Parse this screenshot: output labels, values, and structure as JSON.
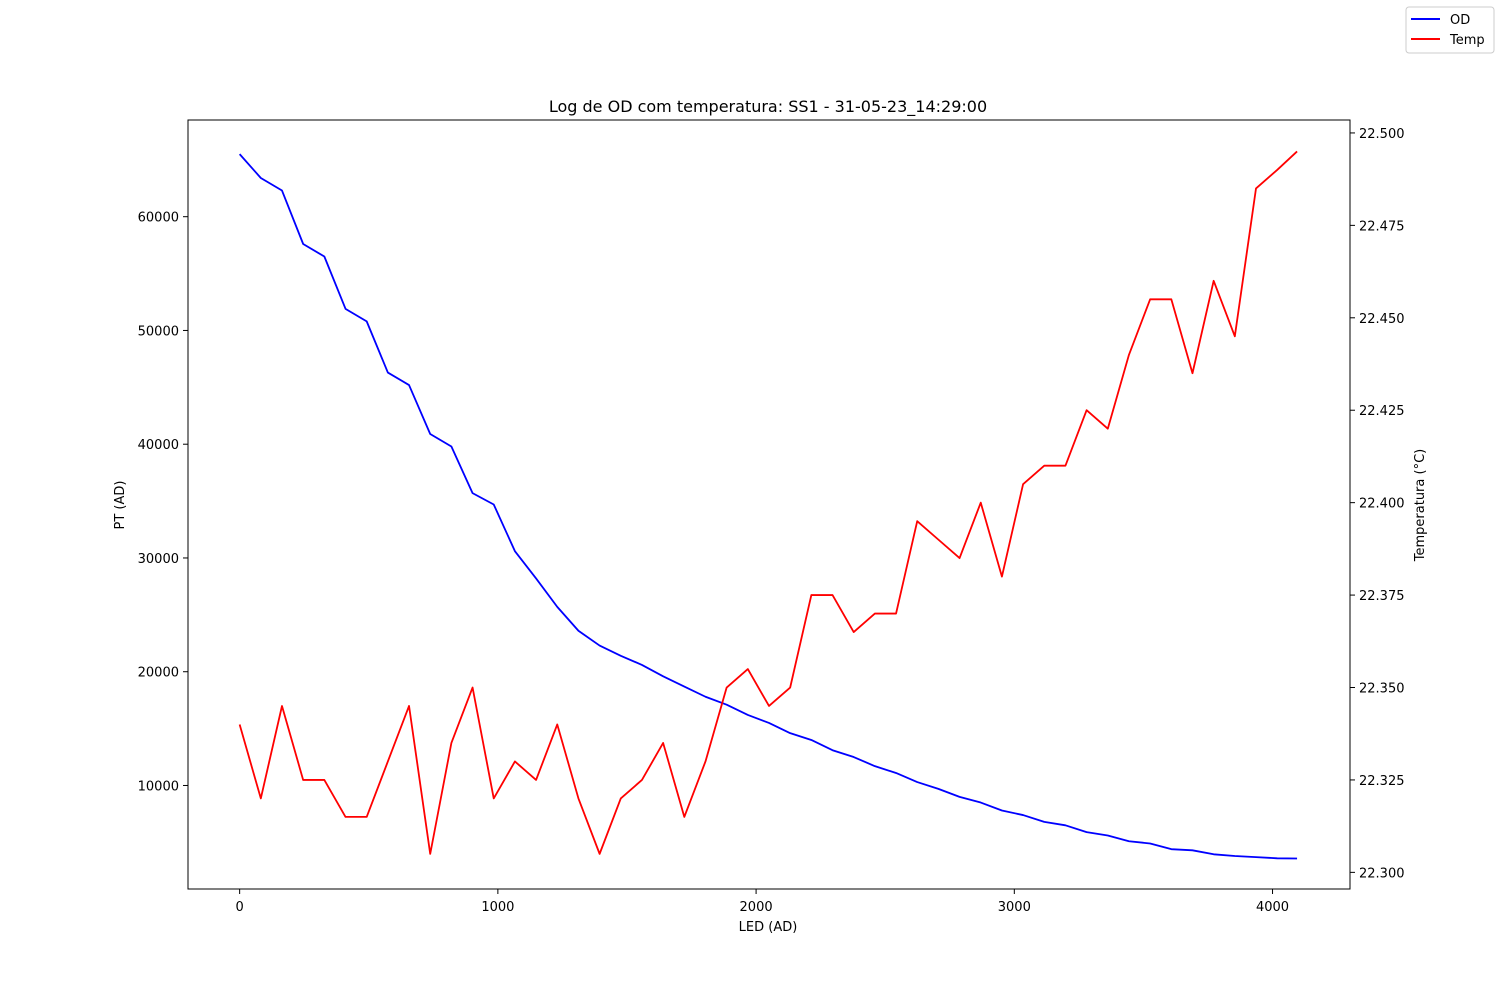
{
  "chart_data": {
    "type": "line",
    "title": "Log de OD com temperatura: SS1 - 31-05-23_14:29:00",
    "xlabel": "LED (AD)",
    "ylabel": "PT (AD)",
    "ylabel_right": "Temperatura (°C)",
    "xlim": [
      -200,
      4300
    ],
    "ylim": [
      900,
      68500
    ],
    "ylim_right": [
      22.2955,
      22.5035
    ],
    "xticks": [
      0,
      1000,
      2000,
      3000,
      4000
    ],
    "yticks": [
      10000,
      20000,
      30000,
      40000,
      50000,
      60000
    ],
    "yticks_right": [
      22.3,
      22.325,
      22.35,
      22.375,
      22.4,
      22.425,
      22.45,
      22.475,
      22.5
    ],
    "yticks_right_labels": [
      "22.300",
      "22.325",
      "22.350",
      "22.375",
      "22.400",
      "22.425",
      "22.450",
      "22.475",
      "22.500"
    ],
    "grid": false,
    "legend_position": "top-right (outside)",
    "x": [
      0,
      82,
      164,
      246,
      328,
      410,
      492,
      574,
      656,
      738,
      820,
      902,
      984,
      1066,
      1148,
      1230,
      1312,
      1394,
      1476,
      1558,
      1640,
      1722,
      1804,
      1886,
      1968,
      2050,
      2132,
      2214,
      2296,
      2378,
      2460,
      2542,
      2624,
      2706,
      2788,
      2870,
      2952,
      3034,
      3116,
      3198,
      3280,
      3362,
      3444,
      3526,
      3608,
      3690,
      3772,
      3854,
      3936,
      4018,
      4095
    ],
    "series": [
      {
        "name": "OD",
        "axis": "left",
        "color": "#0000ff",
        "values": [
          65500,
          63400,
          62300,
          57600,
          56500,
          51900,
          50800,
          46300,
          45200,
          40900,
          39800,
          35700,
          34700,
          30600,
          28200,
          25700,
          23600,
          22300,
          21400,
          20600,
          19600,
          18700,
          17800,
          17100,
          16200,
          15500,
          14600,
          14000,
          13100,
          12500,
          11700,
          11100,
          10300,
          9700,
          9000,
          8500,
          7800,
          7400,
          6800,
          6500,
          5900,
          5600,
          5100,
          4900,
          4400,
          4300,
          3950,
          3800,
          3700,
          3600,
          3580
        ]
      },
      {
        "name": "Temp",
        "axis": "right",
        "color": "#ff0000",
        "values": [
          22.34,
          22.32,
          22.345,
          22.325,
          22.325,
          22.315,
          22.315,
          22.33,
          22.345,
          22.305,
          22.335,
          22.35,
          22.32,
          22.33,
          22.325,
          22.34,
          22.32,
          22.305,
          22.32,
          22.325,
          22.335,
          22.315,
          22.33,
          22.35,
          22.355,
          22.345,
          22.35,
          22.375,
          22.375,
          22.365,
          22.37,
          22.37,
          22.395,
          22.39,
          22.385,
          22.4,
          22.38,
          22.405,
          22.41,
          22.41,
          22.425,
          22.42,
          22.44,
          22.455,
          22.455,
          22.435,
          22.46,
          22.445,
          22.485,
          22.49,
          22.495
        ]
      }
    ]
  }
}
